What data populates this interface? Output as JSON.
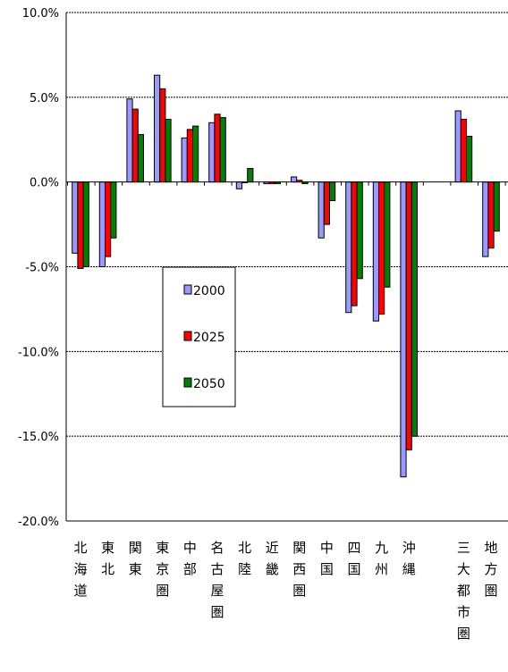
{
  "chart_data": {
    "type": "bar",
    "title": "",
    "xlabel": "",
    "ylabel": "",
    "ylim": [
      -20,
      10
    ],
    "yticks": [
      10,
      5,
      0,
      -5,
      -10,
      -15,
      -20
    ],
    "ytick_labels": [
      "10.0%",
      "5.0%",
      "0.0%",
      "-5.0%",
      "-10.0%",
      "-15.0%",
      "-20.0%"
    ],
    "grid": true,
    "legend_position": "center-left",
    "categories": [
      "北海道",
      "東北",
      "関東",
      "東京圏",
      "中部",
      "名古屋圏",
      "北陸",
      "近畿",
      "関西圏",
      "中国",
      "四国",
      "九州",
      "沖縄",
      "",
      "三大都市圏",
      "地方圏"
    ],
    "series": [
      {
        "name": "2000",
        "color": "#9999ff",
        "values": [
          -4.2,
          -5.0,
          4.9,
          6.3,
          2.6,
          3.5,
          -0.4,
          -0.1,
          0.3,
          -3.3,
          -7.7,
          -8.2,
          -17.4,
          null,
          4.2,
          -4.4
        ]
      },
      {
        "name": "2025",
        "color": "#ff0000",
        "values": [
          -5.1,
          -4.4,
          4.3,
          5.5,
          3.1,
          4.0,
          0.0,
          -0.1,
          0.1,
          -2.5,
          -7.3,
          -7.8,
          -15.8,
          null,
          3.7,
          -3.9
        ]
      },
      {
        "name": "2050",
        "color": "#008000",
        "values": [
          -5.0,
          -3.3,
          2.8,
          3.7,
          3.3,
          3.8,
          0.8,
          -0.1,
          -0.1,
          -1.1,
          -5.7,
          -6.2,
          -15.0,
          null,
          2.7,
          -2.9
        ]
      }
    ]
  }
}
